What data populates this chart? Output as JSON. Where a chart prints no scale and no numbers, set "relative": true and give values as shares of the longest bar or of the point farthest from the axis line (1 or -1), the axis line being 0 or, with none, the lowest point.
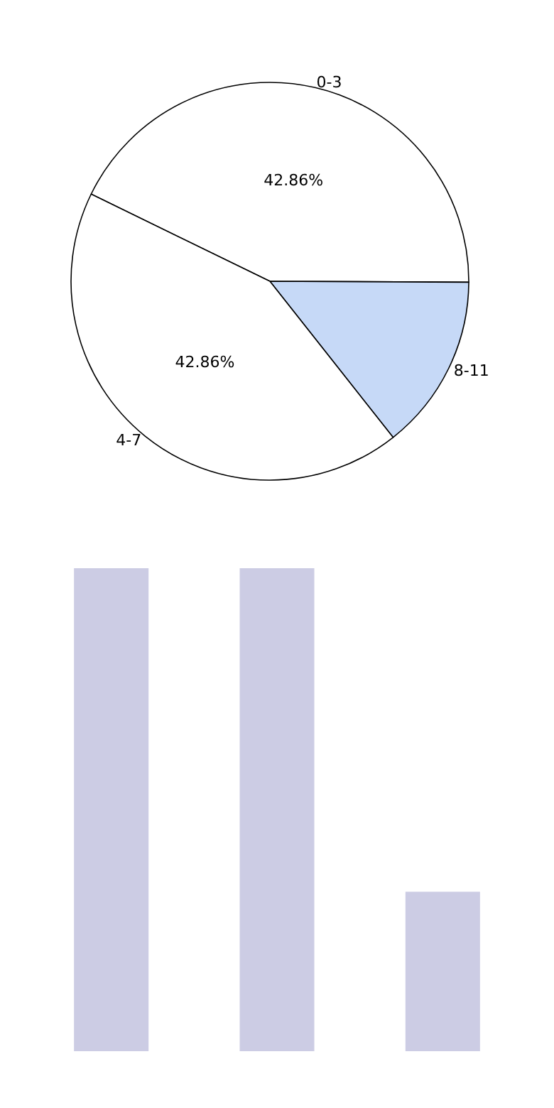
{
  "chart_data": [
    {
      "type": "pie",
      "categories": [
        "0-3",
        "8-11",
        "4-7"
      ],
      "values": [
        42.86,
        14.29,
        42.86
      ],
      "colors": [
        "#ffffff",
        "#c6d9f7",
        "#ffffff"
      ],
      "value_labels": [
        "42.86%",
        null,
        "42.86%"
      ]
    },
    {
      "type": "bar",
      "categories": [
        null,
        null,
        null
      ],
      "values": [
        1,
        1,
        0.33
      ],
      "color": "#cccce4",
      "relative": true
    }
  ]
}
